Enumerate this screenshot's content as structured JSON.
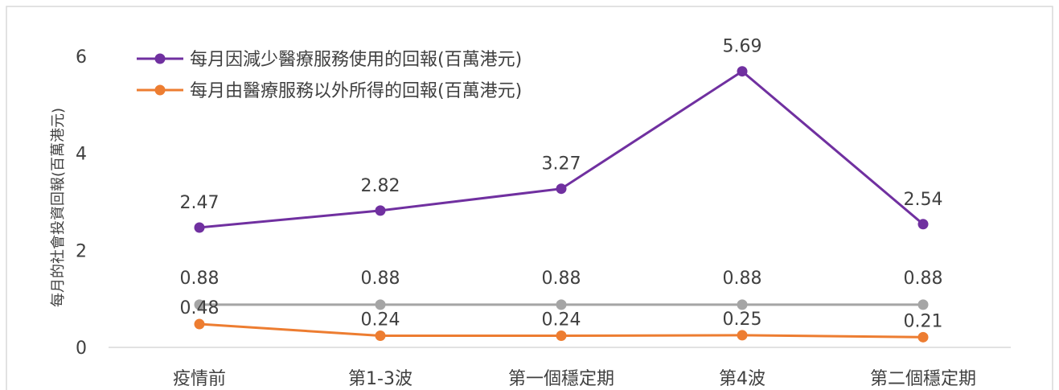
{
  "chart_data": {
    "type": "line",
    "categories": [
      "疫情前",
      "第1-3波",
      "第一個穩定期",
      "第4波",
      "第二個穩定期"
    ],
    "series": [
      {
        "name": "每月因減少醫療服務使用的回報(百萬港元)",
        "values": [
          2.47,
          2.82,
          3.27,
          5.69,
          2.54
        ],
        "labels": [
          "2.47",
          "2.82",
          "3.27",
          "5.69",
          "2.54"
        ],
        "color": "#7030A0"
      },
      {
        "name": "每月由醫療服務以外所得的回報(百萬港元)",
        "values": [
          0.48,
          0.24,
          0.24,
          0.25,
          0.21
        ],
        "labels": [
          "0.48",
          "0.24",
          "0.24",
          "0.25",
          "0.21"
        ],
        "color": "#ED7D31"
      },
      {
        "name": "",
        "values": [
          0.88,
          0.88,
          0.88,
          0.88,
          0.88
        ],
        "labels": [
          "0.88",
          "0.88",
          "0.88",
          "0.88",
          "0.88"
        ],
        "color": "#A5A5A5"
      }
    ],
    "ylabel": "每月的社會投資回報(百萬港元)",
    "ylim": [
      0,
      6
    ],
    "yticks": [
      "0",
      "2",
      "4",
      "6"
    ],
    "grid": false,
    "legend": "top-left"
  }
}
